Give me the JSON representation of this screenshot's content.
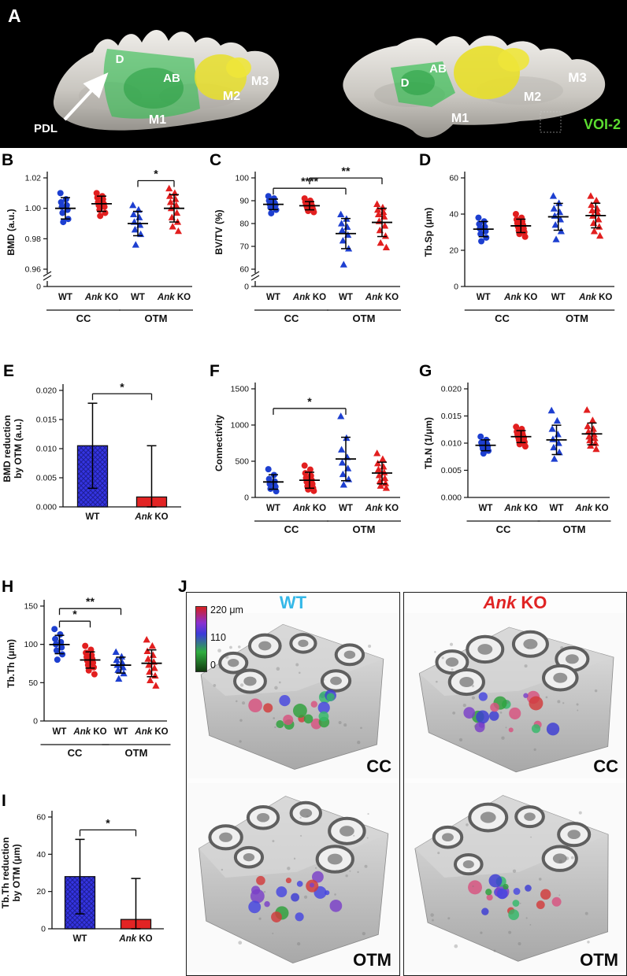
{
  "panelA": {
    "letter": "A",
    "left": {
      "d": "D",
      "ab": "AB",
      "m1": "M1",
      "m2": "M2",
      "m3": "M3",
      "pdl": "PDL"
    },
    "right": {
      "d": "D",
      "ab": "AB",
      "m1": "M1",
      "m2": "M2",
      "m3": "M3",
      "voi": "VOI-2"
    },
    "voi_color": "#5bdc30"
  },
  "panelJ": {
    "letter": "J",
    "scalebar": {
      "top": "220 μm",
      "mid": "110",
      "bottom": "0"
    },
    "columns": [
      {
        "label": "WT",
        "color": "#35b8e8"
      },
      {
        "label_italic": "Ank",
        "label_rest": " KO",
        "color": "#e02424"
      }
    ],
    "rows": [
      "CC",
      "OTM"
    ]
  },
  "colors": {
    "wt_points": "#1d3fd0",
    "ko_points": "#e21f1f",
    "wt_bar": "#3434e2",
    "ko_bar": "#e22424"
  },
  "chart_data": [
    {
      "panel": "B",
      "id": "B",
      "type": "scatter",
      "ylabel": "BMD (a.u.)",
      "ylim": [
        0.96,
        1.02
      ],
      "yticks": [
        0.96,
        0.98,
        1.0,
        1.02
      ],
      "ytick_labels": [
        "0.96",
        "0.98",
        "1.00",
        "1.02"
      ],
      "axis_break_zero": true,
      "zero_label": "0",
      "categories": [
        "WT",
        "Ank KO",
        "WT",
        "Ank KO"
      ],
      "group_labels": [
        "CC",
        "OTM"
      ],
      "groups": [
        {
          "name": "WT CC",
          "marker": "circle",
          "color": "#1d3fd0",
          "values": [
            1.01,
            1.006,
            1.004,
            1.002,
            1.001,
            0.999,
            0.997,
            0.993,
            0.991
          ],
          "mean": 1.0,
          "sd": 0.007
        },
        {
          "name": "Ank KO CC",
          "marker": "circle",
          "color": "#e21f1f",
          "values": [
            1.01,
            1.008,
            1.007,
            1.006,
            1.004,
            1.003,
            1.002,
            1.001,
            0.999,
            0.997,
            0.995
          ],
          "mean": 1.003,
          "sd": 0.005
        },
        {
          "name": "WT OTM",
          "marker": "triangle",
          "color": "#1d3fd0",
          "values": [
            1.002,
            0.999,
            0.996,
            0.994,
            0.991,
            0.989,
            0.986,
            0.983,
            0.976
          ],
          "mean": 0.99,
          "sd": 0.008
        },
        {
          "name": "Ank KO OTM",
          "marker": "triangle",
          "color": "#e21f1f",
          "values": [
            1.013,
            1.01,
            1.008,
            1.006,
            1.004,
            1.002,
            1.0,
            0.997,
            0.994,
            0.991,
            0.988,
            0.985
          ],
          "mean": 1.0,
          "sd": 0.009
        }
      ],
      "significance": [
        {
          "from": 2,
          "to": 3,
          "label": "*",
          "level": 0
        }
      ]
    },
    {
      "panel": "C",
      "id": "C",
      "type": "scatter",
      "ylabel": "BV/TV (%)",
      "ylim": [
        60,
        100
      ],
      "yticks": [
        60,
        70,
        80,
        90,
        100
      ],
      "ytick_labels": [
        "60",
        "70",
        "80",
        "90",
        "100"
      ],
      "axis_break_zero": true,
      "zero_label": "0",
      "categories": [
        "WT",
        "Ank KO",
        "WT",
        "Ank KO"
      ],
      "group_labels": [
        "CC",
        "OTM"
      ],
      "groups": [
        {
          "name": "WT CC",
          "marker": "circle",
          "color": "#1d3fd0",
          "values": [
            92,
            91,
            90,
            89,
            88.5,
            88,
            87,
            86,
            84.5
          ],
          "mean": 88.4,
          "sd": 2.3
        },
        {
          "name": "Ank KO CC",
          "marker": "circle",
          "color": "#e21f1f",
          "values": [
            91,
            90,
            89.5,
            89,
            88.5,
            88,
            87.5,
            87,
            86.5,
            86,
            85.5,
            85
          ],
          "mean": 87.8,
          "sd": 1.8
        },
        {
          "name": "WT OTM",
          "marker": "triangle",
          "color": "#1d3fd0",
          "values": [
            84,
            82,
            80,
            78.5,
            77,
            75,
            72.5,
            69,
            62
          ],
          "mean": 75.6,
          "sd": 6.6
        },
        {
          "name": "Ank KO OTM",
          "marker": "triangle",
          "color": "#e21f1f",
          "values": [
            88.5,
            87,
            86,
            85,
            84,
            83,
            81,
            79,
            77,
            74.5,
            71.5,
            69.5
          ],
          "mean": 80.5,
          "sd": 6.2
        }
      ],
      "significance": [
        {
          "from": 0,
          "to": 2,
          "label": "****",
          "level": 0
        },
        {
          "from": 1,
          "to": 3,
          "label": "**",
          "level": 1
        }
      ]
    },
    {
      "panel": "D",
      "id": "D",
      "type": "scatter",
      "ylabel": "Tb.Sp (μm)",
      "ylim": [
        0,
        60
      ],
      "yticks": [
        0,
        20,
        40,
        60
      ],
      "ytick_labels": [
        "0",
        "20",
        "40",
        "60"
      ],
      "axis_break_zero": false,
      "categories": [
        "WT",
        "Ank KO",
        "WT",
        "Ank KO"
      ],
      "group_labels": [
        "CC",
        "OTM"
      ],
      "groups": [
        {
          "name": "WT CC",
          "marker": "circle",
          "color": "#1d3fd0",
          "values": [
            38,
            36,
            34.5,
            33,
            32,
            30.5,
            29,
            27,
            25
          ],
          "mean": 31.7,
          "sd": 4.2
        },
        {
          "name": "Ank KO CC",
          "marker": "circle",
          "color": "#e21f1f",
          "values": [
            40,
            38,
            37,
            36,
            35,
            34,
            33,
            32,
            31,
            30,
            29,
            27.5
          ],
          "mean": 33.5,
          "sd": 3.7
        },
        {
          "name": "WT OTM",
          "marker": "triangle",
          "color": "#1d3fd0",
          "values": [
            50,
            46,
            43,
            41,
            39,
            37,
            34,
            30.5,
            26
          ],
          "mean": 38.5,
          "sd": 7.4
        },
        {
          "name": "Ank KO OTM",
          "marker": "triangle",
          "color": "#e21f1f",
          "values": [
            50,
            47.5,
            45,
            43,
            42,
            40.5,
            39,
            37,
            35,
            33,
            30.5,
            28
          ],
          "mean": 39.2,
          "sd": 6.8
        }
      ],
      "significance": []
    },
    {
      "panel": "E",
      "id": "E",
      "type": "bar",
      "ylabel_lines": [
        "BMD reduction",
        "by OTM (a.u.)"
      ],
      "ylim": [
        0,
        0.02
      ],
      "yticks": [
        0,
        0.005,
        0.01,
        0.015,
        0.02
      ],
      "ytick_labels": [
        "0.000",
        "0.005",
        "0.010",
        "0.015",
        "0.020"
      ],
      "categories": [
        "WT",
        "Ank KO"
      ],
      "bars": [
        {
          "label": "WT",
          "value": 0.0105,
          "err": 0.0073,
          "color": "#3434e2",
          "hatch": true
        },
        {
          "label": "Ank KO",
          "value": 0.0017,
          "err": 0.0088,
          "color": "#e22424",
          "hatch": false
        }
      ],
      "significance": [
        {
          "from": 0,
          "to": 1,
          "label": "*"
        }
      ]
    },
    {
      "panel": "F",
      "id": "F",
      "type": "scatter",
      "ylabel": "Connectivity",
      "ylim": [
        0,
        1500
      ],
      "yticks": [
        0,
        500,
        1000,
        1500
      ],
      "ytick_labels": [
        "0",
        "500",
        "1000",
        "1500"
      ],
      "axis_break_zero": false,
      "categories": [
        "WT",
        "Ank KO",
        "WT",
        "Ank KO"
      ],
      "group_labels": [
        "CC",
        "OTM"
      ],
      "groups": [
        {
          "name": "WT CC",
          "marker": "circle",
          "color": "#1d3fd0",
          "values": [
            390,
            310,
            255,
            220,
            185,
            150,
            120,
            85
          ],
          "mean": 214,
          "sd": 100
        },
        {
          "name": "Ank KO CC",
          "marker": "circle",
          "color": "#e21f1f",
          "values": [
            440,
            385,
            335,
            300,
            270,
            240,
            215,
            185,
            155,
            130,
            110,
            90
          ],
          "mean": 238,
          "sd": 110
        },
        {
          "name": "WT OTM",
          "marker": "triangle",
          "color": "#1d3fd0",
          "values": [
            1120,
            820,
            660,
            555,
            480,
            400,
            320,
            250,
            175
          ],
          "mean": 531,
          "sd": 300
        },
        {
          "name": "Ank KO OTM",
          "marker": "triangle",
          "color": "#e21f1f",
          "values": [
            610,
            530,
            470,
            425,
            385,
            345,
            305,
            265,
            225,
            195,
            160,
            130
          ],
          "mean": 337,
          "sd": 150
        }
      ],
      "significance": [
        {
          "from": 0,
          "to": 2,
          "label": "*",
          "level": 0
        }
      ]
    },
    {
      "panel": "G",
      "id": "G",
      "type": "scatter",
      "ylabel": "Tb.N (1/μm)",
      "ylim": [
        0,
        0.02
      ],
      "yticks": [
        0,
        0.005,
        0.01,
        0.015,
        0.02
      ],
      "ytick_labels": [
        "0.000",
        "0.005",
        "0.010",
        "0.015",
        "0.020"
      ],
      "axis_break_zero": false,
      "categories": [
        "WT",
        "Ank KO",
        "WT",
        "Ank KO"
      ],
      "group_labels": [
        "CC",
        "OTM"
      ],
      "groups": [
        {
          "name": "WT CC",
          "marker": "circle",
          "color": "#1d3fd0",
          "values": [
            0.0112,
            0.0106,
            0.0101,
            0.0098,
            0.0096,
            0.0093,
            0.009,
            0.0086,
            0.0081
          ],
          "mean": 0.0096,
          "sd": 0.001
        },
        {
          "name": "Ank KO CC",
          "marker": "circle",
          "color": "#e21f1f",
          "values": [
            0.013,
            0.0126,
            0.0121,
            0.0118,
            0.0116,
            0.0113,
            0.0111,
            0.0109,
            0.0106,
            0.0102,
            0.0098,
            0.0094
          ],
          "mean": 0.0112,
          "sd": 0.0011
        },
        {
          "name": "WT OTM",
          "marker": "triangle",
          "color": "#1d3fd0",
          "values": [
            0.016,
            0.0141,
            0.0126,
            0.0116,
            0.0107,
            0.01,
            0.0092,
            0.0083,
            0.0071
          ],
          "mean": 0.0106,
          "sd": 0.0027
        },
        {
          "name": "Ank KO OTM",
          "marker": "triangle",
          "color": "#e21f1f",
          "values": [
            0.0161,
            0.0142,
            0.0131,
            0.0126,
            0.0121,
            0.0116,
            0.0112,
            0.0109,
            0.0105,
            0.01,
            0.0095,
            0.0089
          ],
          "mean": 0.0117,
          "sd": 0.002
        }
      ],
      "significance": []
    },
    {
      "panel": "H",
      "id": "H",
      "type": "scatter",
      "ylabel": "Tb.Th (μm)",
      "ylim": [
        0,
        150
      ],
      "yticks": [
        0,
        50,
        100,
        150
      ],
      "ytick_labels": [
        "0",
        "50",
        "100",
        "150"
      ],
      "axis_break_zero": false,
      "categories": [
        "WT",
        "Ank KO",
        "WT",
        "Ank KO"
      ],
      "group_labels": [
        "CC",
        "OTM"
      ],
      "groups": [
        {
          "name": "WT CC",
          "marker": "circle",
          "color": "#1d3fd0",
          "values": [
            120,
            113,
            107,
            103,
            100,
            96,
            92,
            87,
            80
          ],
          "mean": 99.8,
          "sd": 12
        },
        {
          "name": "Ank KO CC",
          "marker": "circle",
          "color": "#e21f1f",
          "values": [
            98,
            93,
            89,
            86,
            83.5,
            81,
            78.5,
            76,
            73,
            70,
            66,
            61
          ],
          "mean": 79.6,
          "sd": 10.6
        },
        {
          "name": "WT OTM",
          "marker": "triangle",
          "color": "#1d3fd0",
          "values": [
            90,
            84,
            79.5,
            76,
            73,
            70,
            66.5,
            62,
            55
          ],
          "mean": 72.9,
          "sd": 10.4
        },
        {
          "name": "Ank KO OTM",
          "marker": "triangle",
          "color": "#e21f1f",
          "values": [
            106,
            98,
            91,
            86,
            81,
            77,
            73,
            69,
            64,
            59,
            53,
            46
          ],
          "mean": 75.3,
          "sd": 17.5
        }
      ],
      "significance": [
        {
          "from": 0,
          "to": 1,
          "label": "*",
          "level": 0
        },
        {
          "from": 0,
          "to": 2,
          "label": "**",
          "level": 1
        }
      ]
    },
    {
      "panel": "I",
      "id": "I",
      "type": "bar",
      "ylabel_lines": [
        "Tb.Th reduction",
        "by OTM (μm)"
      ],
      "ylim": [
        0,
        60
      ],
      "yticks": [
        0,
        20,
        40,
        60
      ],
      "ytick_labels": [
        "0",
        "20",
        "40",
        "60"
      ],
      "categories": [
        "WT",
        "Ank KO"
      ],
      "bars": [
        {
          "label": "WT",
          "value": 28,
          "err": 20,
          "color": "#3434e2",
          "hatch": true
        },
        {
          "label": "Ank KO",
          "value": 5,
          "err": 22,
          "color": "#e22424",
          "hatch": false
        }
      ],
      "significance": [
        {
          "from": 0,
          "to": 1,
          "label": "*"
        }
      ]
    }
  ]
}
